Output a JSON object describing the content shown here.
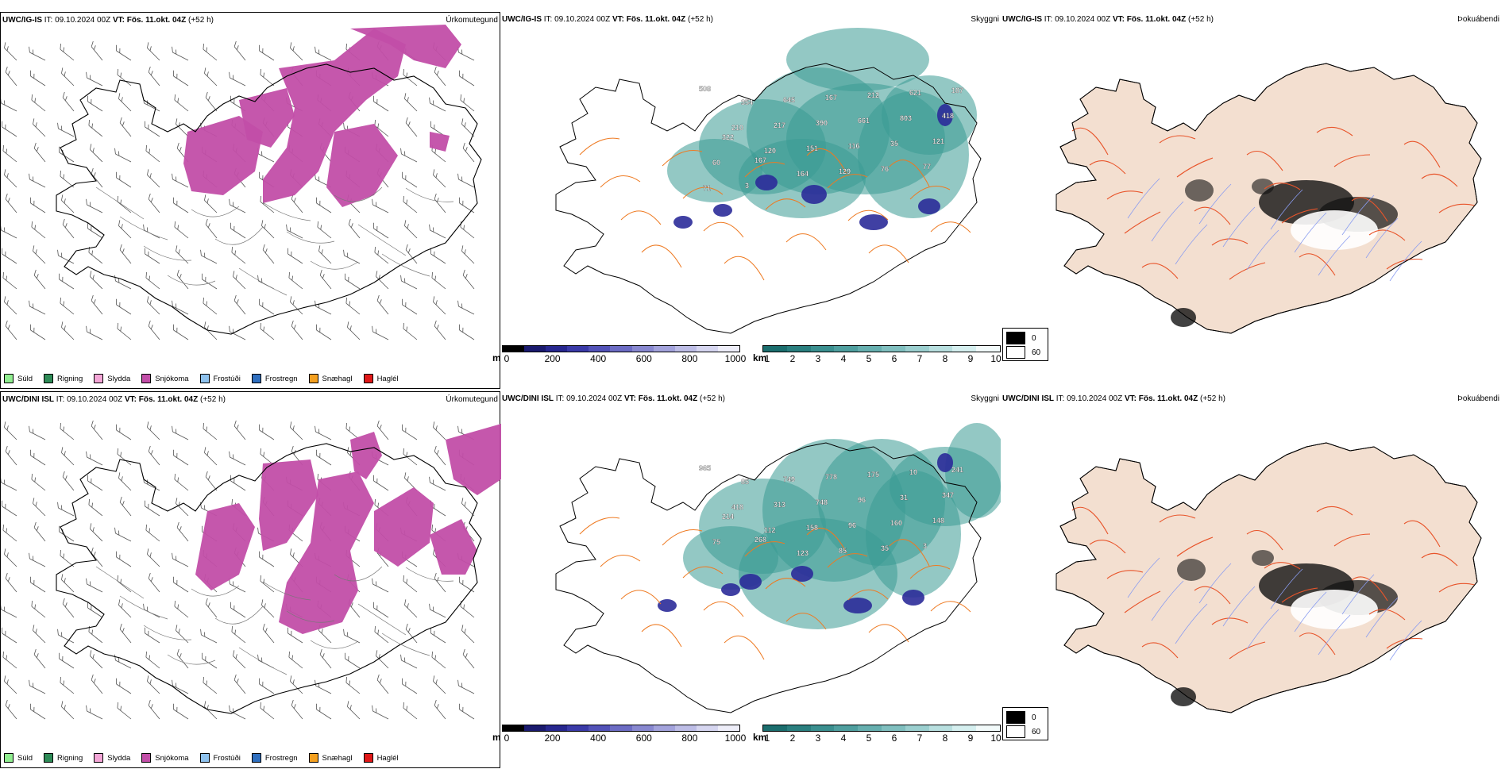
{
  "rows": [
    {
      "model": "UWC/IG-IS",
      "it_label": "IT:",
      "it_value": "09.10.2024 00Z",
      "vt_label": "VT:",
      "vt_value": "Fös. 11.okt. 04Z",
      "lead": "(+52 h)",
      "panels": {
        "precip_type": "Úrkomutegund",
        "cloud": "Skyggni",
        "fog": "Þokuábendi"
      },
      "labels": [
        "508",
        "354",
        "645",
        "167",
        "212",
        "621",
        "187",
        "210",
        "217",
        "390",
        "661",
        "803",
        "418",
        "322",
        "120",
        "151",
        "116",
        "35",
        "121",
        "60",
        "167",
        "164",
        "129",
        "76",
        "77",
        "71",
        "3"
      ]
    },
    {
      "model": "UWC/DINI ISL",
      "it_label": "IT:",
      "it_value": "09.10.2024 00Z",
      "vt_label": "VT:",
      "vt_value": "Fös. 11.okt. 04Z",
      "lead": "(+52 h)",
      "panels": {
        "precip_type": "Úrkomutegund",
        "cloud": "Skyggni",
        "fog": "Þokuábendi"
      },
      "labels": [
        "965",
        "85",
        "749",
        "778",
        "175",
        "10",
        "241",
        "418",
        "313",
        "748",
        "96",
        "31",
        "347",
        "214",
        "112",
        "158",
        "96",
        "160",
        "148",
        "75",
        "268",
        "123",
        "85",
        "35",
        "3"
      ]
    }
  ],
  "precip_legend": [
    {
      "label": "Súld",
      "color": "#90ee90"
    },
    {
      "label": "Rigning",
      "color": "#2e8b57"
    },
    {
      "label": "Slydda",
      "color": "#f4a6d7"
    },
    {
      "label": "Snjókoma",
      "color": "#c24ea8"
    },
    {
      "label": "Frostúði",
      "color": "#8ec2ee"
    },
    {
      "label": "Frostregn",
      "color": "#2f6fbf"
    },
    {
      "label": "Snæhagl",
      "color": "#f4a020"
    },
    {
      "label": "Haglél",
      "color": "#e01818"
    }
  ],
  "cloud_base_m": {
    "unit": "m",
    "ticks": [
      "0",
      "200",
      "400",
      "600",
      "800",
      "1000"
    ],
    "colors": [
      "#000000",
      "#1a1a6e",
      "#27278f",
      "#3a3aa8",
      "#5252b8",
      "#6c6cc4",
      "#8888d0",
      "#a3a3dc",
      "#bdbde6",
      "#d6d6f0",
      "#eeeef9"
    ]
  },
  "cloud_cover_km": {
    "unit": "km",
    "ticks": [
      "1",
      "2",
      "3",
      "4",
      "5",
      "6",
      "7",
      "8",
      "9",
      "10"
    ],
    "colors": [
      "#1b6e6e",
      "#2a7f7f",
      "#3a8f8f",
      "#4f9f9f",
      "#66afaf",
      "#80bfbf",
      "#9bcfcf",
      "#b8dfdf",
      "#d5efef",
      "#f2fafa"
    ]
  },
  "fog_legend": [
    {
      "label": "0",
      "color": "#000000"
    },
    {
      "label": "60",
      "color": "#ffffff"
    }
  ],
  "colors": {
    "snow": "#c24ea8",
    "cloud": "#3a9a94",
    "land": "#f3dfd0",
    "road": "#ee7a22",
    "coast": "#000000"
  }
}
